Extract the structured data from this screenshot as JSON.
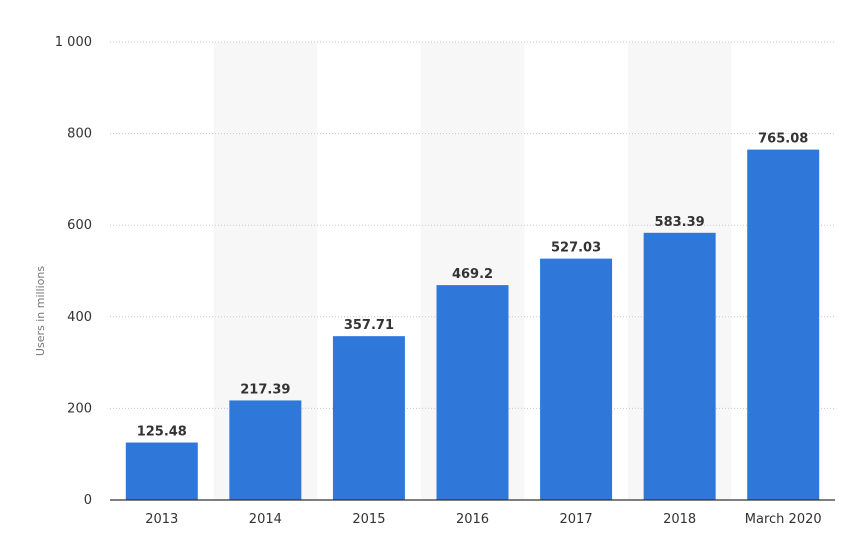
{
  "chart_data": {
    "type": "bar",
    "categories": [
      "2013",
      "2014",
      "2015",
      "2016",
      "2017",
      "2018",
      "March 2020"
    ],
    "values": [
      125.48,
      217.39,
      357.71,
      469.2,
      527.03,
      583.39,
      765.08
    ],
    "value_labels": [
      "125.48",
      "217.39",
      "357.71",
      "469.2",
      "527.03",
      "583.39",
      "765.08"
    ],
    "ylabel": "Users in millions",
    "xlabel": "",
    "ylim": [
      0,
      1000
    ],
    "yticks": [
      0,
      200,
      400,
      600,
      800,
      1000
    ],
    "ytick_labels": [
      "0",
      "200",
      "400",
      "600",
      "800",
      "1 000"
    ],
    "grid": true,
    "legend": "none",
    "colors": {
      "bar": "#2f78d9",
      "grid": "#c8c8c8",
      "axis": "#333333",
      "band": "#f7f7f7"
    }
  }
}
